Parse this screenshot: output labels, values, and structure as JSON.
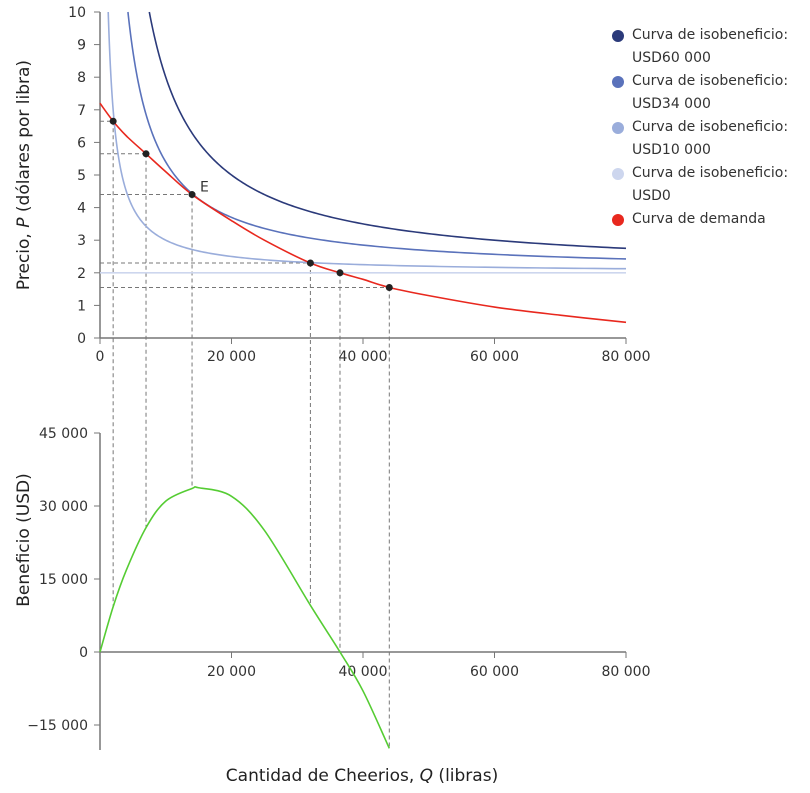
{
  "chart_data": [
    {
      "type": "line",
      "ylabel_pre": "Precio, ",
      "ylabel_var": "P",
      "ylabel_post": " (dólares por libra)",
      "xlim": [
        0,
        80000
      ],
      "ylim": [
        0,
        10
      ],
      "xticks": [
        0,
        20000,
        40000,
        60000,
        80000
      ],
      "xtick_labels": [
        "0",
        "20 000",
        "40 000",
        "60 000",
        "80 000"
      ],
      "yticks": [
        0,
        1,
        2,
        3,
        4,
        5,
        6,
        7,
        8,
        9,
        10
      ],
      "unit_cost": 2,
      "isoprofit": [
        {
          "name": "Curva de isobeneficio:",
          "value_label": "USD60 000",
          "profit": 60000,
          "color": "#2b3a7a"
        },
        {
          "name": "Curva de isobeneficio:",
          "value_label": "USD34 000",
          "profit": 34000,
          "color": "#5a72bb"
        },
        {
          "name": "Curva de isobeneficio:",
          "value_label": "USD10 000",
          "profit": 10000,
          "color": "#9aaddb"
        },
        {
          "name": "Curva de isobeneficio:",
          "value_label": "USD0",
          "profit": 0,
          "color": "#cdd6ee"
        }
      ],
      "demand": {
        "name": "Curva de demanda",
        "color": "#e8281e",
        "Q": [
          0,
          2000,
          4000,
          7000,
          10000,
          14000,
          20000,
          25000,
          32000,
          36500,
          40000,
          44000,
          50000,
          60000,
          70000,
          80000
        ],
        "P": [
          7.2,
          6.65,
          6.2,
          5.65,
          5.1,
          4.4,
          3.6,
          3.0,
          2.3,
          2.0,
          1.8,
          1.55,
          1.3,
          0.95,
          0.7,
          0.48
        ]
      },
      "points": [
        {
          "Q": 2000,
          "P": 6.65
        },
        {
          "Q": 7000,
          "P": 5.65
        },
        {
          "Q": 14000,
          "P": 4.4,
          "label": "E"
        },
        {
          "Q": 32000,
          "P": 2.3
        },
        {
          "Q": 36500,
          "P": 2.0
        },
        {
          "Q": 44000,
          "P": 1.55
        }
      ]
    },
    {
      "type": "line",
      "ylabel": "Beneficio (USD)",
      "xlabel_pre": "Cantidad de Cheerios, ",
      "xlabel_var": "Q",
      "xlabel_post": " (libras)",
      "xlim": [
        0,
        80000
      ],
      "ylim": [
        -15000,
        45000
      ],
      "xticks": [
        20000,
        40000,
        60000,
        80000
      ],
      "xtick_labels": [
        "20 000",
        "40 000",
        "60 000",
        "80 000"
      ],
      "yticks": [
        -15000,
        0,
        15000,
        30000,
        45000
      ],
      "ytick_labels": [
        "−15 000",
        "0",
        "15 000",
        "30 000",
        "45 000"
      ],
      "color": "#55cc33",
      "Q": [
        0,
        2000,
        4000,
        7000,
        10000,
        14000,
        15000,
        20000,
        25000,
        32000,
        36500,
        40000,
        44000
      ],
      "profit": [
        0,
        9300,
        16800,
        25550,
        31000,
        33600,
        33750,
        32000,
        25000,
        9600,
        0,
        -8000,
        -19800
      ]
    }
  ]
}
